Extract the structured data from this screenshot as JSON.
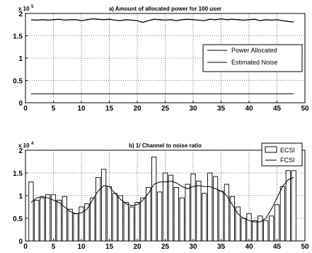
{
  "chart_data": [
    {
      "type": "line",
      "title": "a) Amount of allocated power for 100 user",
      "y_multiplier": "x 10",
      "y_multiplier_exp": "5",
      "xlim": [
        0,
        50
      ],
      "ylim": [
        0,
        2
      ],
      "x_ticks": [
        0,
        5,
        10,
        15,
        20,
        25,
        30,
        35,
        40,
        45,
        50
      ],
      "y_ticks": [
        0,
        0.5,
        1,
        1.5,
        2
      ],
      "grid": true,
      "legend_position": "right",
      "series": [
        {
          "name": "Power Allocated",
          "color": "#000000",
          "x": [
            1,
            2,
            3,
            4,
            5,
            6,
            7,
            8,
            9,
            10,
            11,
            12,
            13,
            14,
            15,
            16,
            17,
            18,
            19,
            20,
            21,
            22,
            23,
            24,
            25,
            26,
            27,
            28,
            29,
            30,
            31,
            32,
            33,
            34,
            35,
            36,
            37,
            38,
            39,
            40,
            41,
            42,
            43,
            44,
            45,
            46,
            47,
            48
          ],
          "values": [
            1.86,
            1.85,
            1.86,
            1.85,
            1.86,
            1.87,
            1.85,
            1.86,
            1.86,
            1.84,
            1.86,
            1.88,
            1.87,
            1.86,
            1.87,
            1.85,
            1.84,
            1.86,
            1.85,
            1.84,
            1.8,
            1.84,
            1.87,
            1.86,
            1.85,
            1.86,
            1.84,
            1.86,
            1.87,
            1.86,
            1.85,
            1.84,
            1.87,
            1.86,
            1.88,
            1.86,
            1.87,
            1.86,
            1.85,
            1.86,
            1.87,
            1.84,
            1.86,
            1.85,
            1.86,
            1.84,
            1.82,
            1.81
          ]
        },
        {
          "name": "Estimated Noise",
          "color": "#000000",
          "x": [
            1,
            48
          ],
          "values": [
            0.2,
            0.2
          ]
        }
      ]
    },
    {
      "type": "bar",
      "title": "b) 1/ Channel to noise ratio",
      "y_multiplier": "x 10",
      "y_multiplier_exp": "4",
      "xlim": [
        0,
        50
      ],
      "ylim": [
        0,
        2
      ],
      "x_ticks": [
        0,
        5,
        10,
        15,
        20,
        25,
        30,
        35,
        40,
        45,
        50
      ],
      "y_ticks": [
        0,
        0.5,
        1,
        1.5,
        2
      ],
      "grid": true,
      "legend_position": "top-right",
      "series": [
        {
          "name": "ECSI",
          "kind": "bar",
          "x": [
            1,
            2,
            3,
            4,
            5,
            6,
            7,
            8,
            9,
            10,
            11,
            12,
            13,
            14,
            15,
            16,
            17,
            18,
            19,
            20,
            21,
            22,
            23,
            24,
            25,
            26,
            27,
            28,
            29,
            30,
            31,
            32,
            33,
            34,
            35,
            36,
            37,
            38,
            39,
            40,
            41,
            42,
            43,
            44,
            45,
            46,
            47,
            48
          ],
          "values": [
            1.3,
            0.9,
            0.95,
            1.02,
            1.02,
            0.9,
            0.98,
            0.7,
            0.6,
            0.75,
            0.82,
            0.95,
            1.4,
            1.58,
            1.2,
            1.05,
            1.0,
            0.85,
            0.75,
            0.85,
            0.95,
            1.18,
            1.85,
            1.08,
            1.5,
            1.45,
            1.18,
            0.95,
            1.25,
            1.48,
            1.32,
            1.05,
            1.5,
            1.42,
            1.1,
            1.25,
            0.98,
            0.75,
            0.5,
            0.6,
            0.45,
            0.55,
            0.45,
            0.55,
            0.8,
            1.2,
            1.55,
            1.55
          ]
        },
        {
          "name": "FCSI",
          "kind": "line",
          "x": [
            1,
            2,
            3,
            4,
            5,
            6,
            7,
            8,
            9,
            10,
            11,
            12,
            13,
            14,
            15,
            16,
            17,
            18,
            19,
            20,
            21,
            22,
            23,
            24,
            25,
            26,
            27,
            28,
            29,
            30,
            31,
            32,
            33,
            34,
            35,
            36,
            37,
            38,
            39,
            40,
            41,
            42,
            43,
            44,
            45,
            46,
            47,
            48
          ],
          "values": [
            0.85,
            0.95,
            0.98,
            0.95,
            0.9,
            0.85,
            0.75,
            0.65,
            0.6,
            0.62,
            0.7,
            0.9,
            1.1,
            1.22,
            1.2,
            1.05,
            0.92,
            0.82,
            0.78,
            0.8,
            0.9,
            1.05,
            1.25,
            1.3,
            1.3,
            1.32,
            1.28,
            1.2,
            1.15,
            1.2,
            1.22,
            1.2,
            1.2,
            1.15,
            1.1,
            1.0,
            0.8,
            0.6,
            0.5,
            0.45,
            0.42,
            0.42,
            0.5,
            0.7,
            0.95,
            1.2,
            1.35,
            1.4
          ]
        }
      ]
    }
  ]
}
